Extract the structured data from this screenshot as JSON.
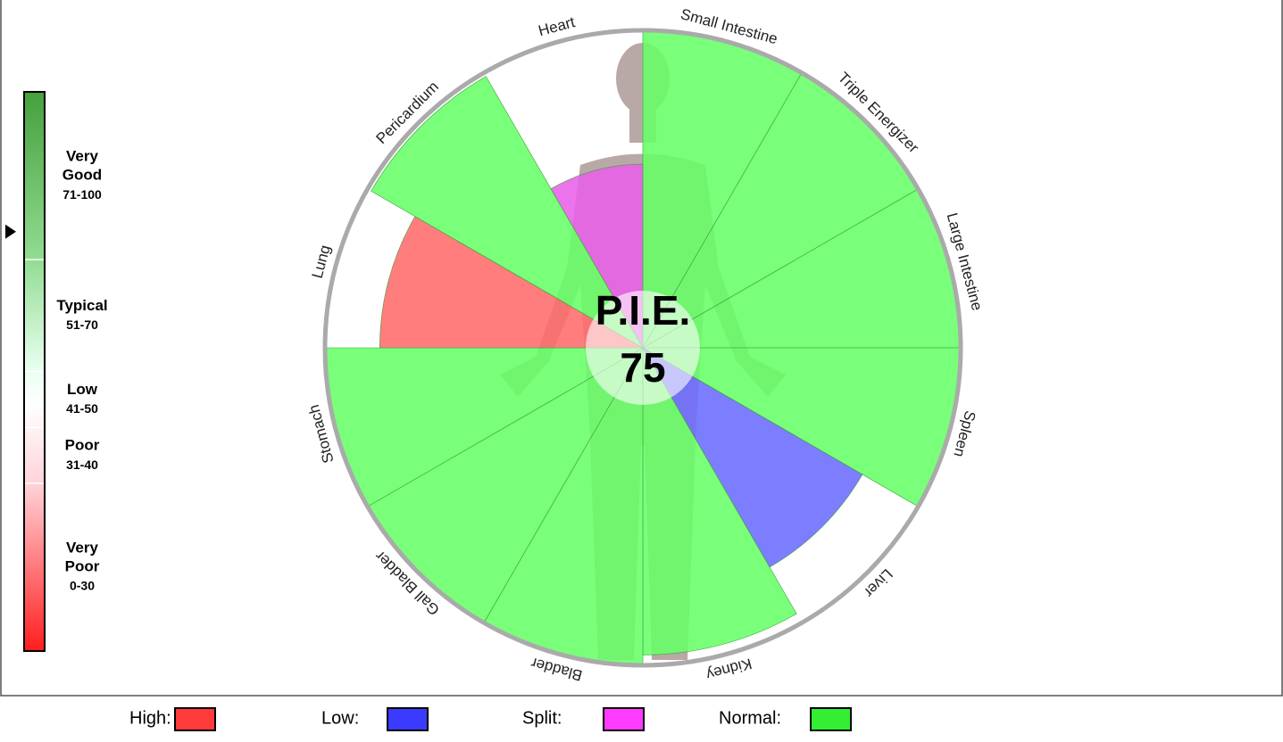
{
  "chart_data": {
    "type": "polar-area",
    "categories": [
      "Small Intestine",
      "Triple Energizer",
      "Large Intestine",
      "Spleen",
      "Liver",
      "Kidney",
      "Bladder",
      "Gall Bladder",
      "Stomach",
      "Lung",
      "Pericardium",
      "Heart"
    ],
    "values": [
      100,
      100,
      100,
      100,
      80,
      97,
      100,
      100,
      100,
      83,
      99,
      58
    ],
    "colors": [
      "#66ff66",
      "#66ff66",
      "#66ff66",
      "#66ff66",
      "#6b6bff",
      "#66ff66",
      "#66ff66",
      "#66ff66",
      "#66ff66",
      "#ff6b6b",
      "#66ff66",
      "#e860e8"
    ],
    "rlim": [
      0,
      100
    ],
    "center_label": "P.I.E.",
    "score": 75,
    "legend": [
      {
        "name": "High:",
        "color": "#ff3b3b"
      },
      {
        "name": "Low:",
        "color": "#3b3bff"
      },
      {
        "name": "Split:",
        "color": "#ff3bff"
      },
      {
        "name": "Normal:",
        "color": "#33ee33"
      }
    ],
    "gauge": {
      "ylim": [
        0,
        100
      ],
      "yticks": [
        30,
        40,
        50,
        70
      ],
      "bands": [
        {
          "name": [
            "Very",
            "Poor"
          ],
          "range": "0-30"
        },
        {
          "name": [
            "Poor"
          ],
          "range": "31-40"
        },
        {
          "name": [
            "Low"
          ],
          "range": "41-50"
        },
        {
          "name": [
            "Typical"
          ],
          "range": "51-70"
        },
        {
          "name": [
            "Very",
            "Good"
          ],
          "range": "71-100"
        }
      ]
    }
  }
}
